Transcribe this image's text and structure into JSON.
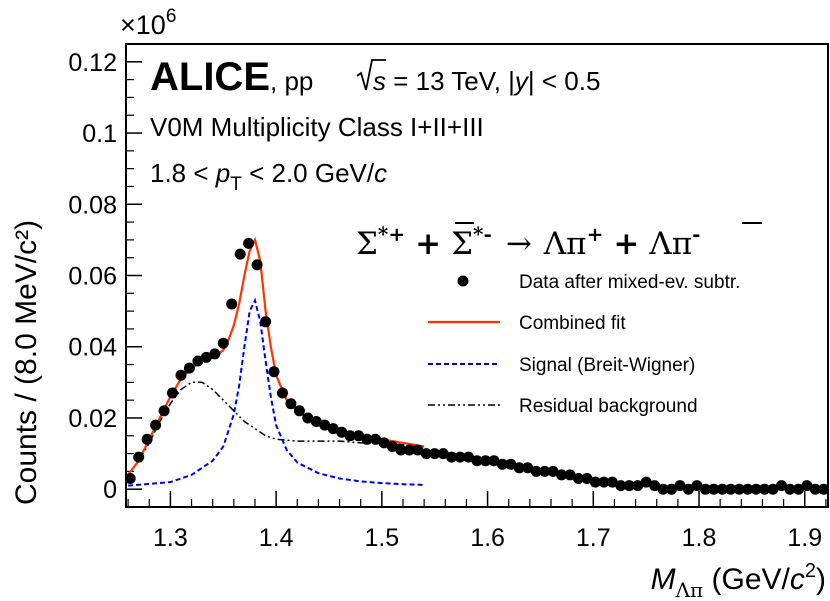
{
  "chart_data": {
    "type": "scatter",
    "title": "",
    "xlabel": {
      "main": "M",
      "sub": "Λπ",
      "units": " (GeV/",
      "units_c": "c",
      "units_exp": "2",
      "units_close": ")"
    },
    "ylabel": "Counts / (8.0 MeV/c²)",
    "y_multiplier": "×10",
    "y_multiplier_exp": "6",
    "xlim": [
      1.258,
      1.922
    ],
    "ylim": [
      -0.005,
      0.125
    ],
    "x_ticks": [
      1.3,
      1.4,
      1.5,
      1.6,
      1.7,
      1.8,
      1.9
    ],
    "x_tick_labels": [
      "1.3",
      "1.4",
      "1.5",
      "1.6",
      "1.7",
      "1.8",
      "1.9"
    ],
    "y_ticks": [
      0,
      0.02,
      0.04,
      0.06,
      0.08,
      0.1,
      0.12
    ],
    "y_tick_labels": [
      "0",
      "0.02",
      "0.04",
      "0.06",
      "0.08",
      "0.1",
      "0.12"
    ],
    "grid": false,
    "legend_position": "right",
    "annotations": {
      "experiment": "ALICE",
      "collision": ", pp",
      "sqrt_s": "s",
      "energy": " = 13 TeV, |",
      "y_var": "y",
      "rapidity": "| < 0.5",
      "multiplicity": "V0M Multiplicity Class I+II+III",
      "pt_range_low": "1.8 < ",
      "pt_var": "p",
      "pt_sub": "T",
      "pt_range_high": " < 2.0 GeV/",
      "pt_unit_c": "c",
      "reaction": {
        "sigma_plus": "Σ",
        "sigma_plus_sup": "*+",
        "plus1": "+",
        "sigma_bar": "Σ",
        "sigma_bar_sup": "*-",
        "arrow": "→",
        "lambda_pi": "Λπ",
        "pi_plus_sup": "+",
        "plus2": "+",
        "lambda_bar": "Λ",
        "pi_minus": "π",
        "pi_minus_sup": "-"
      }
    },
    "series": [
      {
        "name": "Data after mixed-ev. subtr.",
        "style": "points",
        "color": "#000000",
        "x": [
          1.262,
          1.27,
          1.278,
          1.286,
          1.294,
          1.302,
          1.31,
          1.318,
          1.326,
          1.334,
          1.342,
          1.35,
          1.358,
          1.366,
          1.374,
          1.382,
          1.39,
          1.398,
          1.406,
          1.414,
          1.422,
          1.43,
          1.438,
          1.446,
          1.454,
          1.462,
          1.47,
          1.478,
          1.486,
          1.494,
          1.502,
          1.51,
          1.518,
          1.526,
          1.534,
          1.542,
          1.55,
          1.558,
          1.566,
          1.574,
          1.582,
          1.59,
          1.598,
          1.606,
          1.614,
          1.622,
          1.63,
          1.638,
          1.646,
          1.654,
          1.662,
          1.67,
          1.678,
          1.686,
          1.694,
          1.702,
          1.71,
          1.718,
          1.726,
          1.734,
          1.742,
          1.75,
          1.758,
          1.766,
          1.774,
          1.782,
          1.79,
          1.798,
          1.806,
          1.814,
          1.822,
          1.83,
          1.838,
          1.846,
          1.854,
          1.862,
          1.87,
          1.878,
          1.886,
          1.894,
          1.902,
          1.91,
          1.918
        ],
        "y": [
          0.003,
          0.009,
          0.014,
          0.018,
          0.022,
          0.027,
          0.032,
          0.034,
          0.036,
          0.037,
          0.038,
          0.041,
          0.052,
          0.066,
          0.069,
          0.063,
          0.047,
          0.033,
          0.027,
          0.024,
          0.022,
          0.02,
          0.019,
          0.018,
          0.017,
          0.016,
          0.015,
          0.015,
          0.014,
          0.014,
          0.013,
          0.012,
          0.011,
          0.011,
          0.011,
          0.01,
          0.01,
          0.01,
          0.009,
          0.009,
          0.009,
          0.008,
          0.008,
          0.008,
          0.007,
          0.007,
          0.006,
          0.006,
          0.005,
          0.005,
          0.005,
          0.004,
          0.004,
          0.003,
          0.003,
          0.002,
          0.002,
          0.002,
          0.001,
          0.001,
          0.001,
          0.002,
          0.001,
          0.0,
          0.0,
          0.001,
          0.0,
          0.001,
          0.0,
          0.0,
          0.0,
          0.0,
          0.0,
          0.0,
          0.0,
          0.0,
          0.0,
          0.001,
          0.0,
          0.0,
          0.001,
          0.0,
          0.0
        ]
      },
      {
        "name": "Combined fit",
        "style": "solid",
        "color": "#ff3300",
        "x": [
          1.26,
          1.27,
          1.28,
          1.29,
          1.3,
          1.31,
          1.32,
          1.33,
          1.34,
          1.35,
          1.355,
          1.36,
          1.365,
          1.37,
          1.375,
          1.38,
          1.385,
          1.39,
          1.395,
          1.4,
          1.41,
          1.42,
          1.43,
          1.44,
          1.45,
          1.46,
          1.47,
          1.48,
          1.49,
          1.5,
          1.51,
          1.52,
          1.53,
          1.54
        ],
        "y": [
          0.004,
          0.008,
          0.014,
          0.02,
          0.026,
          0.031,
          0.034,
          0.036,
          0.037,
          0.039,
          0.042,
          0.046,
          0.052,
          0.06,
          0.067,
          0.07,
          0.064,
          0.05,
          0.04,
          0.032,
          0.025,
          0.022,
          0.02,
          0.018,
          0.017,
          0.016,
          0.0155,
          0.015,
          0.0145,
          0.014,
          0.0135,
          0.013,
          0.0125,
          0.012
        ]
      },
      {
        "name": "Signal (Breit-Wigner)",
        "style": "dashed",
        "color": "#0000ee",
        "x": [
          1.26,
          1.28,
          1.3,
          1.32,
          1.34,
          1.35,
          1.36,
          1.365,
          1.37,
          1.375,
          1.38,
          1.385,
          1.39,
          1.395,
          1.4,
          1.41,
          1.42,
          1.44,
          1.46,
          1.48,
          1.5,
          1.52,
          1.54
        ],
        "y": [
          0.001,
          0.0015,
          0.002,
          0.004,
          0.008,
          0.012,
          0.021,
          0.029,
          0.04,
          0.05,
          0.053,
          0.047,
          0.036,
          0.026,
          0.018,
          0.011,
          0.0075,
          0.0045,
          0.003,
          0.0022,
          0.0017,
          0.0014,
          0.0012
        ]
      },
      {
        "name": "Residual background",
        "style": "dashdot",
        "color": "#000000",
        "x": [
          1.26,
          1.27,
          1.28,
          1.29,
          1.3,
          1.31,
          1.32,
          1.33,
          1.34,
          1.35,
          1.36,
          1.37,
          1.38,
          1.39,
          1.4,
          1.42,
          1.44,
          1.46,
          1.48,
          1.5,
          1.52,
          1.54
        ],
        "y": [
          0.004,
          0.008,
          0.013,
          0.019,
          0.024,
          0.028,
          0.03,
          0.03,
          0.028,
          0.025,
          0.022,
          0.019,
          0.017,
          0.015,
          0.014,
          0.0135,
          0.0135,
          0.0135,
          0.013,
          0.013,
          0.0125,
          0.012
        ]
      }
    ]
  }
}
